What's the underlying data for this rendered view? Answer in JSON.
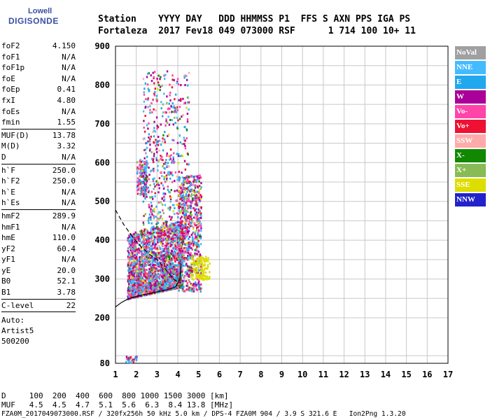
{
  "logo": {
    "line1": "Lowell",
    "line2": "DIGISONDE"
  },
  "header": {
    "line1": "Station    YYYY DAY   DDD HHMMSS P1  FFS S AXN PPS IGA PS",
    "line2": "Fortaleza  2017 Fev18 049 073000 RSF      1 714 100 10+ 11"
  },
  "params": [
    {
      "k": "foF2",
      "v": "4.150"
    },
    {
      "k": "foF1",
      "v": "N/A"
    },
    {
      "k": "foF1p",
      "v": "N/A"
    },
    {
      "k": "foE",
      "v": "N/A"
    },
    {
      "k": "foEp",
      "v": "0.41"
    },
    {
      "k": "fxI",
      "v": "4.80"
    },
    {
      "k": "foEs",
      "v": "N/A"
    },
    {
      "k": "fmin",
      "v": "1.55"
    }
  ],
  "params2": [
    {
      "k": "MUF(D)",
      "v": "13.78"
    },
    {
      "k": "M(D)",
      "v": "3.32"
    },
    {
      "k": "D",
      "v": "N/A"
    }
  ],
  "params3": [
    {
      "k": "h`F",
      "v": "250.0"
    },
    {
      "k": "h`F2",
      "v": "250.0"
    },
    {
      "k": "h`E",
      "v": "N/A"
    },
    {
      "k": "h`Es",
      "v": "N/A"
    }
  ],
  "params4": [
    {
      "k": "hmF2",
      "v": "289.9"
    },
    {
      "k": "hmF1",
      "v": "N/A"
    },
    {
      "k": "hmE",
      "v": "110.0"
    },
    {
      "k": "yF2",
      "v": "60.4"
    },
    {
      "k": "yF1",
      "v": "N/A"
    },
    {
      "k": "yE",
      "v": "20.0"
    },
    {
      "k": "B0",
      "v": "52.1"
    },
    {
      "k": "B1",
      "v": "3.78"
    }
  ],
  "params5": [
    {
      "k": "C-level",
      "v": "22"
    }
  ],
  "auto": {
    "l1": "Auto:",
    "l2": "Artist5",
    "l3": "500200"
  },
  "legend": [
    {
      "label": "NoVal",
      "color": "#a0a0a0"
    },
    {
      "label": "NNE",
      "color": "#44bbff"
    },
    {
      "label": "E",
      "color": "#22a8ee"
    },
    {
      "label": "W",
      "color": "#aa0099"
    },
    {
      "label": "Vo-",
      "color": "#ff44aa"
    },
    {
      "label": "Vo+",
      "color": "#ee1133"
    },
    {
      "label": "SSW",
      "color": "#ffaaaa"
    },
    {
      "label": "X-",
      "color": "#118800"
    },
    {
      "label": "X+",
      "color": "#88bb55"
    },
    {
      "label": "SSE",
      "color": "#dddd00"
    },
    {
      "label": "NNW",
      "color": "#2222cc"
    }
  ],
  "footer": {
    "line1": "D     100  200  400  600  800 1000 1500 3000 [km]",
    "line2": "MUF   4.5  4.5  4.7  5.1  5.6  6.3  8.4 13.8 [MHz]",
    "line3": "FZA0M_2017049073000.RSF / 320fx256h 50 kHz 5.0 km / DPS-4 FZA0M 904 / 3.9 S 321.6 E   Ion2Png 1.3.20"
  },
  "chart_data": {
    "type": "scatter",
    "xlim": [
      1,
      17
    ],
    "ylim": [
      80,
      900
    ],
    "x_ticks": [
      1,
      2,
      3,
      4,
      5,
      6,
      7,
      8,
      9,
      10,
      11,
      12,
      13,
      14,
      15,
      16,
      17
    ],
    "y_ticks": [
      80,
      200,
      300,
      400,
      500,
      600,
      700,
      800,
      900
    ],
    "grid": true,
    "legend_position": "right",
    "traces": [
      {
        "name": "O-trace",
        "x": [
          1.0,
          1.3,
          1.55,
          1.8,
          2.0,
          2.3,
          2.7,
          3.0,
          3.3,
          3.6,
          3.9,
          4.1,
          4.15
        ],
        "y": [
          228,
          240,
          247,
          252,
          255,
          259,
          263,
          267,
          270,
          274,
          280,
          300,
          340
        ]
      },
      {
        "name": "profile",
        "x": [
          1.0,
          1.4,
          1.8,
          2.2,
          2.6,
          3.0,
          3.4,
          3.8,
          4.0,
          4.15
        ],
        "y": [
          478,
          440,
          410,
          385,
          365,
          350,
          325,
          300,
          292,
          290
        ]
      }
    ]
  }
}
